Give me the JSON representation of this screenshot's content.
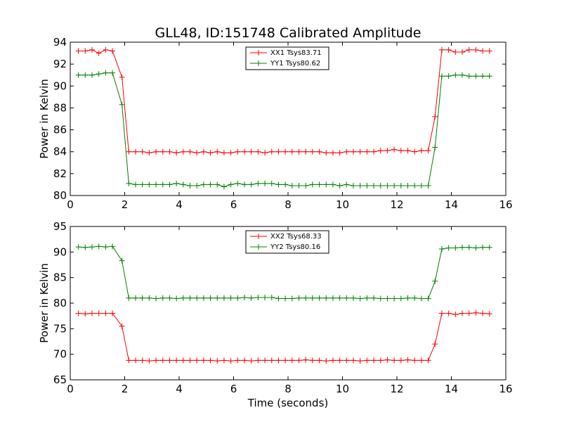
{
  "chart_data": [
    {
      "type": "line",
      "title": "GLL48, ID:151748 Calibrated Amplitude",
      "xlabel": "",
      "ylabel": "Power in Kelvin",
      "xlim": [
        0,
        16
      ],
      "ylim": [
        80,
        94
      ],
      "xticks": [
        0,
        2,
        4,
        6,
        8,
        10,
        12,
        14,
        16
      ],
      "yticks": [
        80,
        82,
        84,
        86,
        88,
        90,
        92,
        94
      ],
      "legend_position": "top-center",
      "x": [
        0.3,
        0.55,
        0.8,
        1.05,
        1.3,
        1.55,
        1.9,
        2.15,
        2.4,
        2.65,
        2.9,
        3.15,
        3.4,
        3.65,
        3.9,
        4.15,
        4.4,
        4.65,
        4.9,
        5.15,
        5.4,
        5.65,
        5.9,
        6.15,
        6.4,
        6.65,
        6.9,
        7.15,
        7.4,
        7.65,
        7.9,
        8.15,
        8.4,
        8.65,
        8.9,
        9.15,
        9.4,
        9.65,
        9.9,
        10.15,
        10.4,
        10.65,
        10.9,
        11.15,
        11.4,
        11.65,
        11.9,
        12.15,
        12.4,
        12.65,
        12.9,
        13.15,
        13.4,
        13.65,
        13.9,
        14.15,
        14.4,
        14.65,
        14.9,
        15.15,
        15.4
      ],
      "series": [
        {
          "name": "XX1 Tsys83.71",
          "color": "#ff0000",
          "values": [
            93.2,
            93.2,
            93.3,
            93.0,
            93.3,
            93.2,
            90.8,
            84.0,
            84.0,
            84.0,
            83.9,
            84.0,
            84.0,
            84.0,
            83.9,
            84.0,
            84.0,
            83.9,
            84.0,
            83.9,
            84.0,
            83.9,
            83.9,
            84.0,
            84.0,
            84.0,
            84.0,
            83.9,
            84.0,
            84.0,
            84.0,
            84.0,
            84.0,
            84.0,
            84.0,
            84.0,
            83.9,
            83.9,
            83.9,
            84.0,
            84.0,
            84.0,
            84.0,
            84.0,
            84.1,
            84.1,
            84.2,
            84.1,
            84.1,
            84.0,
            84.1,
            84.1,
            87.2,
            93.3,
            93.3,
            93.1,
            93.1,
            93.3,
            93.3,
            93.2,
            93.2
          ]
        },
        {
          "name": "YY1 Tsys80.62",
          "color": "#008000",
          "values": [
            91.0,
            91.0,
            91.0,
            91.1,
            91.2,
            91.2,
            88.3,
            81.1,
            81.0,
            81.0,
            81.0,
            81.0,
            81.0,
            81.0,
            81.1,
            81.0,
            80.9,
            80.9,
            81.0,
            81.0,
            81.0,
            80.8,
            81.0,
            81.1,
            81.0,
            81.0,
            81.1,
            81.1,
            81.1,
            81.0,
            81.0,
            80.9,
            80.9,
            80.9,
            81.0,
            81.0,
            81.0,
            81.0,
            80.9,
            81.0,
            80.9,
            80.9,
            80.9,
            80.9,
            80.9,
            80.9,
            80.9,
            80.9,
            80.9,
            80.9,
            80.9,
            80.9,
            84.4,
            90.9,
            90.9,
            91.0,
            91.0,
            90.9,
            90.9,
            90.9,
            90.9
          ]
        }
      ]
    },
    {
      "type": "line",
      "title": "",
      "xlabel": "Time (seconds)",
      "ylabel": "Power in Kelvin",
      "xlim": [
        0,
        16
      ],
      "ylim": [
        65,
        95
      ],
      "xticks": [
        0,
        2,
        4,
        6,
        8,
        10,
        12,
        14,
        16
      ],
      "yticks": [
        65,
        70,
        75,
        80,
        85,
        90,
        95
      ],
      "legend_position": "top-center",
      "x": [
        0.3,
        0.55,
        0.8,
        1.05,
        1.3,
        1.55,
        1.9,
        2.15,
        2.4,
        2.65,
        2.9,
        3.15,
        3.4,
        3.65,
        3.9,
        4.15,
        4.4,
        4.65,
        4.9,
        5.15,
        5.4,
        5.65,
        5.9,
        6.15,
        6.4,
        6.65,
        6.9,
        7.15,
        7.4,
        7.65,
        7.9,
        8.15,
        8.4,
        8.65,
        8.9,
        9.15,
        9.4,
        9.65,
        9.9,
        10.15,
        10.4,
        10.65,
        10.9,
        11.15,
        11.4,
        11.65,
        11.9,
        12.15,
        12.4,
        12.65,
        12.9,
        13.15,
        13.4,
        13.65,
        13.9,
        14.15,
        14.4,
        14.65,
        14.9,
        15.15,
        15.4
      ],
      "series": [
        {
          "name": "XX2 Tsys68.33",
          "color": "#ff0000",
          "values": [
            78.0,
            77.9,
            78.0,
            78.0,
            78.0,
            78.0,
            75.5,
            68.8,
            68.8,
            68.8,
            68.7,
            68.8,
            68.8,
            68.8,
            68.8,
            68.8,
            68.8,
            68.8,
            68.8,
            68.8,
            68.7,
            68.8,
            68.7,
            68.8,
            68.8,
            68.7,
            68.8,
            68.8,
            68.8,
            68.8,
            68.8,
            68.8,
            68.8,
            68.9,
            68.8,
            68.8,
            68.7,
            68.8,
            68.8,
            68.8,
            68.8,
            68.7,
            68.8,
            68.8,
            68.8,
            68.9,
            68.8,
            68.8,
            68.9,
            68.8,
            68.8,
            68.8,
            72.0,
            78.0,
            78.0,
            77.8,
            78.0,
            78.0,
            78.1,
            78.0,
            77.9
          ]
        },
        {
          "name": "YY2 Tsys80.16",
          "color": "#008000",
          "values": [
            91.0,
            90.9,
            91.0,
            91.1,
            91.0,
            91.1,
            88.3,
            81.0,
            81.0,
            81.0,
            81.0,
            80.9,
            81.0,
            81.0,
            80.9,
            81.0,
            81.0,
            81.0,
            81.0,
            81.0,
            81.0,
            81.0,
            81.0,
            81.0,
            81.1,
            81.0,
            81.1,
            81.1,
            81.1,
            80.9,
            80.9,
            80.9,
            81.0,
            81.0,
            81.0,
            81.0,
            81.0,
            81.0,
            81.0,
            81.0,
            81.0,
            80.9,
            81.0,
            81.0,
            80.9,
            80.9,
            80.9,
            80.9,
            81.0,
            81.0,
            80.9,
            80.9,
            84.3,
            90.6,
            90.8,
            90.8,
            90.9,
            90.9,
            90.8,
            90.9,
            90.9
          ]
        }
      ]
    }
  ]
}
